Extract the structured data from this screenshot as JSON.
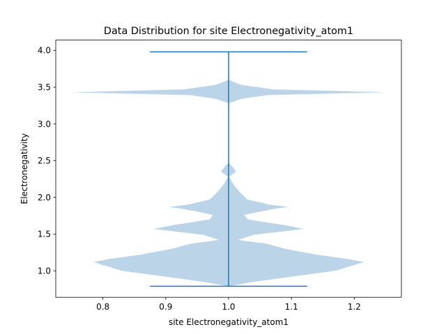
{
  "chart_data": {
    "type": "violin",
    "title": "Data Distribution for site Electronegativity_atom1",
    "xlabel": "site Electronegativity_atom1",
    "ylabel": "Electronegativity",
    "xlim": [
      0.725,
      1.275
    ],
    "ylim": [
      0.64,
      4.14
    ],
    "xticks": [
      "0.8",
      "0.9",
      "1.0",
      "1.1",
      "1.2"
    ],
    "yticks": [
      "1.0",
      "1.5",
      "2.0",
      "2.5",
      "3.0",
      "3.5",
      "4.0"
    ],
    "position": 1.0,
    "min": 0.79,
    "max": 3.98,
    "extrema_cap_halfwidth": 0.125,
    "max_violin_halfwidth": 0.25,
    "density_profile": [
      {
        "y": 0.79,
        "w": 0.0
      },
      {
        "y": 0.85,
        "w": 0.04
      },
      {
        "y": 0.92,
        "w": 0.1
      },
      {
        "y": 1.0,
        "w": 0.17
      },
      {
        "y": 1.08,
        "w": 0.2
      },
      {
        "y": 1.12,
        "w": 0.215
      },
      {
        "y": 1.16,
        "w": 0.19
      },
      {
        "y": 1.22,
        "w": 0.14
      },
      {
        "y": 1.3,
        "w": 0.09
      },
      {
        "y": 1.37,
        "w": 0.06
      },
      {
        "y": 1.42,
        "w": 0.015
      },
      {
        "y": 1.49,
        "w": 0.04
      },
      {
        "y": 1.57,
        "w": 0.12
      },
      {
        "y": 1.62,
        "w": 0.09
      },
      {
        "y": 1.7,
        "w": 0.03
      },
      {
        "y": 1.76,
        "w": 0.025
      },
      {
        "y": 1.84,
        "w": 0.07
      },
      {
        "y": 1.87,
        "w": 0.095
      },
      {
        "y": 1.9,
        "w": 0.065
      },
      {
        "y": 1.97,
        "w": 0.03
      },
      {
        "y": 2.05,
        "w": 0.02
      },
      {
        "y": 2.13,
        "w": 0.012
      },
      {
        "y": 2.2,
        "w": 0.006
      },
      {
        "y": 2.28,
        "w": 0.001
      },
      {
        "y": 2.35,
        "w": 0.012
      },
      {
        "y": 2.42,
        "w": 0.006
      },
      {
        "y": 2.47,
        "w": 0.0
      },
      {
        "y": 3.28,
        "w": 0.0
      },
      {
        "y": 3.34,
        "w": 0.02
      },
      {
        "y": 3.39,
        "w": 0.06
      },
      {
        "y": 3.43,
        "w": 0.25
      },
      {
        "y": 3.47,
        "w": 0.07
      },
      {
        "y": 3.53,
        "w": 0.02
      },
      {
        "y": 3.6,
        "w": 0.0
      }
    ],
    "colors": {
      "violin_fill": "#bcd4e8",
      "lines": "#1f77b4",
      "axes": "#000000"
    }
  }
}
